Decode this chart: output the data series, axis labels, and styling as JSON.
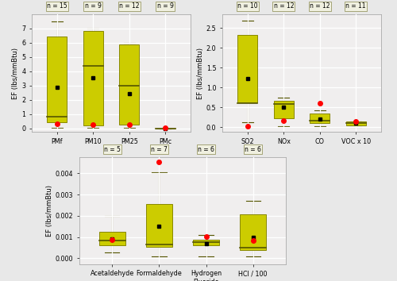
{
  "box_color": "#cccc00",
  "box_edge_color": "#888800",
  "median_color": "#555500",
  "whisker_color": "#555500",
  "mean_color": "black",
  "ap42_color": "red",
  "panel_bg": "#f0f0f0",
  "ax_bg": "#f0eeee",
  "grid_color": "white",
  "panel1": {
    "ylabel": "EF (lbs/mmBtu)",
    "categories": [
      "PMf",
      "PM10",
      "PM25",
      "PMc"
    ],
    "n_values": [
      15,
      9,
      12,
      9
    ],
    "ylim": [
      -0.25,
      8.0
    ],
    "yticks": [
      0,
      1,
      2,
      3,
      4,
      5,
      6,
      7
    ],
    "yticklabels": [
      "0",
      "1",
      "2",
      "3",
      "4",
      "5",
      "6",
      "7"
    ],
    "boxes": [
      {
        "q1": 0.45,
        "median": 0.8,
        "q3": 6.45,
        "whisker_lo": 0.05,
        "whisker_hi": 7.5,
        "mean": 2.9,
        "ap42": 0.35
      },
      {
        "q1": 0.22,
        "median": 4.38,
        "q3": 6.82,
        "whisker_lo": 0.05,
        "whisker_hi": 7.0,
        "mean": 3.55,
        "ap42": 0.28
      },
      {
        "q1": 0.28,
        "median": 3.0,
        "q3": 5.88,
        "whisker_lo": 0.05,
        "whisker_hi": 6.0,
        "mean": 2.42,
        "ap42": 0.27
      },
      {
        "q1": 0.005,
        "median": 0.008,
        "q3": 0.015,
        "whisker_lo": 0.002,
        "whisker_hi": 0.018,
        "mean": 0.008,
        "ap42": 0.055
      }
    ]
  },
  "panel2": {
    "ylabel": "EF (lbs/mmBtu)",
    "categories": [
      "SO2",
      "NOx",
      "CO",
      "VOC x 10"
    ],
    "n_values": [
      10,
      12,
      12,
      11
    ],
    "ylim": [
      -0.12,
      2.85
    ],
    "yticks": [
      0.0,
      0.5,
      1.0,
      1.5,
      2.0,
      2.5
    ],
    "yticklabels": [
      "0.0",
      "0.5",
      "1.0",
      "1.5",
      "2.0",
      "2.5"
    ],
    "boxes": [
      {
        "q1": 0.62,
        "median": 0.6,
        "q3": 2.32,
        "whisker_lo": 0.12,
        "whisker_hi": 2.68,
        "mean": 1.22,
        "ap42": 0.02
      },
      {
        "q1": 0.22,
        "median": 0.59,
        "q3": 0.67,
        "whisker_lo": 0.03,
        "whisker_hi": 0.75,
        "mean": 0.5,
        "ap42": 0.17
      },
      {
        "q1": 0.1,
        "median": 0.17,
        "q3": 0.35,
        "whisker_lo": 0.02,
        "whisker_hi": 0.42,
        "mean": 0.2,
        "ap42": 0.6
      },
      {
        "q1": 0.05,
        "median": 0.1,
        "q3": 0.14,
        "whisker_lo": 0.005,
        "whisker_hi": 0.15,
        "mean": 0.1,
        "ap42": 0.15
      }
    ]
  },
  "panel3": {
    "ylabel": "EF (lbs/mmBtu)",
    "categories": [
      "Acetaldehyde",
      "Formaldehyde",
      "Hydrogen\nFluoride",
      "HCl / 100"
    ],
    "n_values": [
      5,
      7,
      6,
      6
    ],
    "ylim": [
      -0.00028,
      0.00475
    ],
    "yticks": [
      0.0,
      0.001,
      0.002,
      0.003,
      0.004
    ],
    "yticklabels": [
      "0.000",
      "0.001",
      "0.002",
      "0.003",
      "0.004"
    ],
    "boxes": [
      {
        "q1": 0.00062,
        "median": 0.00085,
        "q3": 0.00125,
        "whisker_lo": 0.00028,
        "whisker_hi": 0.00198,
        "mean": 0.00092,
        "ap42": 0.00088
      },
      {
        "q1": 0.00055,
        "median": 0.00065,
        "q3": 0.00255,
        "whisker_lo": 0.0001,
        "whisker_hi": 0.00405,
        "mean": 0.00152,
        "ap42": 0.00455
      },
      {
        "q1": 0.0006,
        "median": 0.00075,
        "q3": 0.00088,
        "whisker_lo": 0.0001,
        "whisker_hi": 0.00108,
        "mean": 0.0007,
        "ap42": 0.00102
      },
      {
        "q1": 0.00038,
        "median": 0.0005,
        "q3": 0.00205,
        "whisker_lo": 0.0001,
        "whisker_hi": 0.00272,
        "mean": 0.00098,
        "ap42": 0.00082
      }
    ]
  }
}
